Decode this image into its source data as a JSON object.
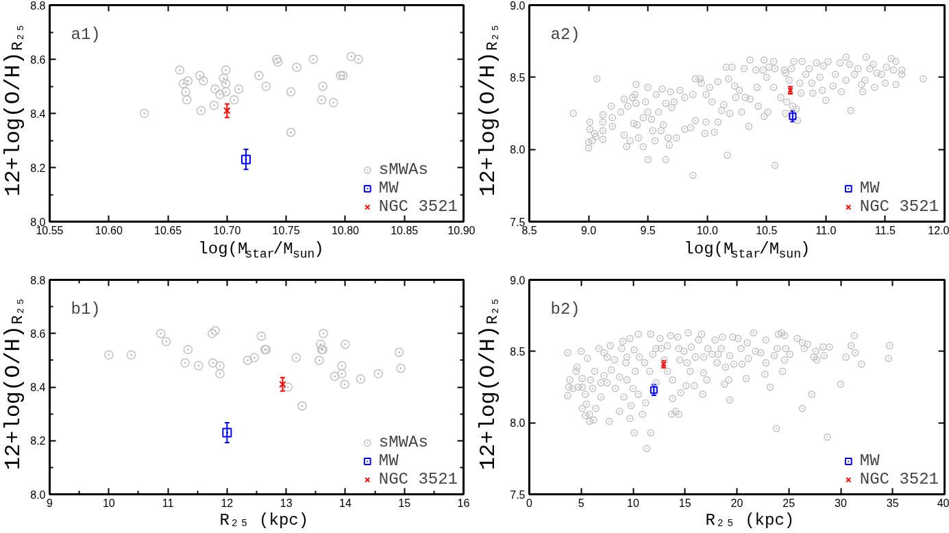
{
  "chart_data": [
    {
      "type": "scatter",
      "title": "a1)",
      "xlabel": "log(M$_{star}$/M$_{sun}$)",
      "ylabel": "12+log(O/H)$_{R₂₅}$",
      "xlim": [
        10.55,
        10.9
      ],
      "ylim": [
        8.0,
        8.8
      ],
      "xticks": [
        10.55,
        {
          "value": 10.6,
          "label": "10.60"
        },
        10.65,
        {
          "value": 10.7,
          "label": "10.70"
        },
        10.75,
        {
          "value": 10.8,
          "label": "10.80"
        },
        10.85,
        {
          "value": 10.9,
          "label": "10.90"
        }
      ],
      "yticks": [
        {
          "value": 8.0,
          "label": "8.0"
        },
        {
          "value": 8.1,
          "label": null
        },
        8.2,
        {
          "value": 8.3,
          "label": null
        },
        8.4,
        {
          "value": 8.5,
          "label": null
        },
        8.6,
        {
          "value": 8.7,
          "label": null
        },
        8.8
      ],
      "legend": "bottom right",
      "series": [
        {
          "name": "sMWAs",
          "color": "#c0c0c0",
          "marker": "circle",
          "x": [
            10.63,
            10.66,
            10.663,
            10.667,
            10.665,
            10.666,
            10.677,
            10.68,
            10.678,
            10.689,
            10.69,
            10.694,
            10.697,
            10.699,
            10.699,
            10.699,
            10.706,
            10.71,
            10.727,
            10.733,
            10.742,
            10.743,
            10.754,
            10.754,
            10.759,
            10.773,
            10.781,
            10.78,
            10.79,
            10.796,
            10.798,
            10.805,
            10.811
          ],
          "values": [
            8.4,
            8.56,
            8.51,
            8.52,
            8.48,
            8.45,
            8.54,
            8.52,
            8.41,
            8.43,
            8.49,
            8.47,
            8.53,
            8.56,
            8.51,
            8.48,
            8.45,
            8.49,
            8.54,
            8.5,
            8.6,
            8.59,
            8.48,
            8.33,
            8.57,
            8.6,
            8.5,
            8.45,
            8.44,
            8.54,
            8.54,
            8.61,
            8.6
          ]
        },
        {
          "name": "MW",
          "color": "#0000ff",
          "marker": "square",
          "x": [
            10.716
          ],
          "values": [
            8.23
          ],
          "errors": [
            0.037
          ]
        },
        {
          "name": "NGC 3521",
          "color": "#ff0000",
          "marker": "cross",
          "x": [
            10.7
          ],
          "values": [
            8.41
          ],
          "errors": [
            0.025
          ]
        }
      ]
    },
    {
      "type": "scatter",
      "title": "a2)",
      "xlabel": "log(M$_{star}$/M$_{sun}$)",
      "ylabel": "12+log(O/H)$_{R₂₅}$",
      "xlim": [
        8.5,
        12.0
      ],
      "ylim": [
        7.5,
        9.0
      ],
      "xticks": [
        8.5,
        {
          "value": 9.0,
          "label": "9.0"
        },
        9.5,
        {
          "value": 10.0,
          "label": "10.0"
        },
        10.5,
        {
          "value": 11.0,
          "label": "11.0"
        },
        11.5,
        {
          "value": 12.0,
          "label": "12.0"
        }
      ],
      "yticks": [
        7.5,
        {
          "value": 8.0,
          "label": "8.0"
        },
        8.5,
        {
          "value": 9.0,
          "label": "9.0"
        }
      ],
      "legend": "bottom right",
      "series": [
        {
          "color": "#c0c0c0",
          "marker": "circle",
          "x": [
            8.87,
            9.07,
            9.01,
            9.01,
            9.0,
            9.0,
            9.03,
            9.05,
            9.06,
            9.12,
            9.12,
            9.12,
            9.12,
            9.19,
            9.2,
            9.2,
            9.27,
            9.3,
            9.3,
            9.32,
            9.33,
            9.35,
            9.37,
            9.38,
            9.4,
            9.39,
            9.4,
            9.41,
            9.42,
            9.46,
            9.46,
            9.48,
            9.5,
            9.5,
            9.5,
            9.53,
            9.54,
            9.57,
            9.56,
            9.59,
            9.61,
            9.62,
            9.63,
            9.65,
            9.65,
            9.67,
            9.68,
            9.69,
            9.7,
            9.72,
            9.74,
            9.77,
            9.81,
            9.81,
            9.86,
            9.88,
            9.88,
            9.9,
            9.9,
            9.94,
            9.95,
            9.98,
            9.99,
            10.02,
            10.04,
            10.06,
            10.09,
            10.09,
            10.12,
            10.14,
            10.16,
            10.17,
            10.18,
            10.19,
            10.21,
            10.23,
            10.27,
            10.29,
            10.31,
            10.32,
            10.35,
            10.36,
            10.36,
            10.41,
            10.42,
            10.43,
            10.47,
            10.48,
            10.48,
            10.5,
            10.51,
            10.52,
            10.56,
            10.56,
            10.57,
            10.57,
            10.62,
            10.65,
            10.66,
            10.67,
            10.69,
            10.72,
            10.73,
            10.75,
            10.76,
            10.79,
            10.8,
            10.83,
            10.86,
            10.88,
            10.89,
            10.92,
            10.95,
            10.97,
            10.98,
            11.0,
            11.02,
            11.06,
            11.08,
            11.12,
            11.13,
            11.17,
            11.17,
            11.2,
            11.21,
            11.24,
            11.27,
            11.3,
            11.31,
            11.33,
            11.34,
            11.37,
            11.4,
            11.41,
            11.43,
            11.47,
            11.5,
            11.51,
            11.55,
            11.57,
            11.59,
            11.59,
            11.64,
            11.64,
            11.82,
            10.66,
            10.71,
            10.78,
            9.99,
            10.24
          ],
          "values": [
            8.25,
            8.49,
            8.19,
            8.14,
            8.05,
            8.01,
            8.06,
            8.11,
            8.09,
            8.07,
            8.13,
            8.19,
            8.24,
            8.3,
            8.22,
            8.16,
            8.26,
            8.35,
            8.1,
            8.02,
            8.3,
            8.06,
            8.36,
            8.18,
            8.45,
            8.38,
            8.32,
            8.17,
            8.08,
            8.02,
            8.22,
            8.33,
            8.43,
            7.93,
            8.26,
            8.21,
            8.13,
            8.38,
            8.06,
            8.26,
            8.13,
            8.42,
            8.17,
            7.93,
            8.32,
            8.08,
            8.03,
            8.4,
            8.29,
            8.33,
            8.08,
            8.41,
            8.36,
            8.14,
            8.15,
            7.82,
            8.38,
            8.49,
            8.2,
            8.49,
            8.46,
            8.11,
            8.19,
            8.43,
            8.33,
            8.12,
            8.19,
            8.47,
            8.27,
            8.31,
            8.57,
            7.96,
            8.49,
            8.25,
            8.57,
            8.44,
            8.41,
            8.26,
            8.56,
            8.36,
            8.16,
            8.62,
            8.35,
            8.55,
            8.43,
            8.3,
            8.55,
            8.62,
            8.23,
            8.5,
            8.26,
            8.57,
            8.61,
            8.43,
            7.89,
            8.56,
            8.36,
            8.55,
            8.25,
            8.33,
            8.48,
            8.3,
            8.61,
            8.28,
            8.2,
            8.39,
            8.61,
            8.52,
            8.56,
            8.46,
            8.39,
            8.6,
            8.5,
            8.41,
            8.58,
            8.34,
            8.61,
            8.44,
            8.52,
            8.6,
            8.4,
            8.48,
            8.64,
            8.59,
            8.27,
            8.52,
            8.56,
            8.45,
            8.4,
            8.48,
            8.64,
            8.56,
            8.59,
            8.43,
            8.53,
            8.52,
            8.46,
            8.57,
            8.63,
            8.55,
            8.61,
            8.45,
            8.52,
            8.55,
            8.49,
            8.53,
            8.56,
            8.46,
            8.38,
            8.36
          ]
        },
        {
          "name": "MW",
          "color": "#0000ff",
          "marker": "square",
          "x": [
            10.72
          ],
          "values": [
            8.23
          ],
          "errors": [
            0.037
          ]
        },
        {
          "name": "NGC 3521",
          "color": "#ff0000",
          "marker": "cross",
          "x": [
            10.7
          ],
          "values": [
            8.41
          ],
          "errors": [
            0.025
          ]
        }
      ]
    },
    {
      "type": "scatter",
      "title": "b1)",
      "xlabel": "R₂₅ (kpc)",
      "ylabel": "12+log(O/H)$_{R₂₅}$",
      "xlim": [
        9,
        16
      ],
      "ylim": [
        8.0,
        8.8
      ],
      "xticks": [
        9,
        {
          "value": 9.5,
          "label": null
        },
        10,
        {
          "value": 10.5,
          "label": null
        },
        11,
        {
          "value": 11.5,
          "label": null
        },
        12,
        {
          "value": 12.5,
          "label": null
        },
        13,
        {
          "value": 13.5,
          "label": null
        },
        14,
        {
          "value": 14.5,
          "label": null
        },
        15,
        {
          "value": 15.5,
          "label": null
        },
        16
      ],
      "yticks": [
        {
          "value": 8.0,
          "label": "8.0"
        },
        {
          "value": 8.1,
          "label": null
        },
        8.2,
        {
          "value": 8.3,
          "label": null
        },
        8.4,
        {
          "value": 8.5,
          "label": null
        },
        8.6,
        {
          "value": 8.7,
          "label": null
        },
        8.8
      ],
      "legend": "bottom right",
      "series": [
        {
          "name": "sMWAs",
          "color": "#c0c0c0",
          "marker": "circle",
          "x": [
            10.0,
            10.38,
            10.88,
            10.97,
            11.34,
            11.29,
            11.52,
            11.75,
            11.8,
            11.76,
            11.88,
            11.88,
            12.35,
            12.46,
            12.58,
            12.64,
            12.66,
            13.03,
            13.17,
            13.27,
            13.56,
            13.58,
            13.6,
            13.62,
            13.63,
            13.82,
            13.94,
            13.94,
            13.99,
            14.0,
            14.26,
            14.56,
            14.91,
            14.94
          ],
          "values": [
            8.52,
            8.52,
            8.6,
            8.57,
            8.54,
            8.49,
            8.48,
            8.6,
            8.61,
            8.49,
            8.48,
            8.45,
            8.5,
            8.51,
            8.59,
            8.54,
            8.54,
            8.4,
            8.51,
            8.33,
            8.5,
            8.56,
            8.54,
            8.54,
            8.6,
            8.44,
            8.45,
            8.48,
            8.41,
            8.56,
            8.43,
            8.45,
            8.53,
            8.47
          ]
        },
        {
          "name": "MW",
          "color": "#0000ff",
          "marker": "square",
          "x": [
            12.0
          ],
          "values": [
            8.23
          ],
          "errors": [
            0.037
          ]
        },
        {
          "name": "NGC 3521",
          "color": "#ff0000",
          "marker": "cross",
          "x": [
            12.94
          ],
          "values": [
            8.41
          ],
          "errors": [
            0.025
          ]
        }
      ]
    },
    {
      "type": "scatter",
      "title": "b2)",
      "xlabel": "R₂₅ (kpc)",
      "ylabel": "12+log(O/H)$_{R₂₅}$",
      "xlim": [
        0,
        40
      ],
      "ylim": [
        7.5,
        9.0
      ],
      "xticks": [
        0,
        5,
        10,
        15,
        20,
        25,
        30,
        35,
        40
      ],
      "yticks": [
        7.5,
        {
          "value": 8.0,
          "label": "8.0"
        },
        8.5,
        {
          "value": 9.0,
          "label": "9.0"
        }
      ],
      "legend": "bottom right",
      "series": [
        {
          "color": "#c0c0c0",
          "marker": "circle",
          "x": [
            3.7,
            3.7,
            3.9,
            3.8,
            4.5,
            4.6,
            4.2,
            4.7,
            5.0,
            5.1,
            5.1,
            5.4,
            5.6,
            5.5,
            5.1,
            5.4,
            5.8,
            5.8,
            6.2,
            6.4,
            5.9,
            6.1,
            6.3,
            6.7,
            6.9,
            7.2,
            7.2,
            7.5,
            7.7,
            7.8,
            7.9,
            8.2,
            8.3,
            8.7,
            8.7,
            9.0,
            9.1,
            9.3,
            9.4,
            9.7,
            9.7,
            9.8,
            10.0,
            10.1,
            10.2,
            10.5,
            10.5,
            10.6,
            10.9,
            11.2,
            11.3,
            11.7,
            11.7,
            11.6,
            11.9,
            12.2,
            12.6,
            12.7,
            13.3,
            13.3,
            13.6,
            13.7,
            13.8,
            13.8,
            14.1,
            14.4,
            14.3,
            14.5,
            14.6,
            14.9,
            15.1,
            15.3,
            15.5,
            15.6,
            15.9,
            16.0,
            16.3,
            16.6,
            16.7,
            16.8,
            17.1,
            17.2,
            17.6,
            17.9,
            18.1,
            18.5,
            18.6,
            18.8,
            18.9,
            19.2,
            19.3,
            19.3,
            19.6,
            19.7,
            20.1,
            20.4,
            20.5,
            20.9,
            21.0,
            21.1,
            21.6,
            21.8,
            22.3,
            22.7,
            22.8,
            22.8,
            23.2,
            23.6,
            23.8,
            23.9,
            24.0,
            24.3,
            24.4,
            24.6,
            24.6,
            24.7,
            25.1,
            25.8,
            26.3,
            26.3,
            26.5,
            26.8,
            27.2,
            27.4,
            27.6,
            27.7,
            28.3,
            28.4,
            28.7,
            28.9,
            30.0,
            30.5,
            31.0,
            31.3,
            31.4,
            32.0,
            34.7,
            34.6,
            7.5,
            8.9,
            9.4,
            10.1,
            11.1,
            12.2,
            13.0,
            14.4,
            15.2,
            16.8,
            18.2,
            6.9
          ],
          "values": [
            8.49,
            8.19,
            8.3,
            8.25,
            8.36,
            8.39,
            8.24,
            8.25,
            8.5,
            8.25,
            8.31,
            8.2,
            8.45,
            8.13,
            8.1,
            8.05,
            8.06,
            8.01,
            8.02,
            8.1,
            8.3,
            8.24,
            8.36,
            8.52,
            8.18,
            8.49,
            8.33,
            8.28,
            8.01,
            8.54,
            8.37,
            8.44,
            8.24,
            8.08,
            8.32,
            8.57,
            8.18,
            8.42,
            8.3,
            8.03,
            8.59,
            8.12,
            8.24,
            7.93,
            8.36,
            8.62,
            8.2,
            8.46,
            8.06,
            8.14,
            7.82,
            7.93,
            8.62,
            8.36,
            8.48,
            8.28,
            8.59,
            8.52,
            8.36,
            8.54,
            8.61,
            8.06,
            8.17,
            8.3,
            8.08,
            8.06,
            8.6,
            8.44,
            8.21,
            8.5,
            8.26,
            8.63,
            8.36,
            8.53,
            8.26,
            8.46,
            8.58,
            8.62,
            8.2,
            8.35,
            8.3,
            8.52,
            8.48,
            8.58,
            8.42,
            8.52,
            8.6,
            8.27,
            8.39,
            8.3,
            8.47,
            8.16,
            8.6,
            8.41,
            8.59,
            8.52,
            8.41,
            8.31,
            8.56,
            8.45,
            8.63,
            8.5,
            8.49,
            8.34,
            8.58,
            8.42,
            8.25,
            8.47,
            7.96,
            8.52,
            8.62,
            8.63,
            8.36,
            8.44,
            8.61,
            8.52,
            8.48,
            8.59,
            8.56,
            8.1,
            8.52,
            8.55,
            8.2,
            8.46,
            8.5,
            8.44,
            8.53,
            8.47,
            7.9,
            8.53,
            8.27,
            8.46,
            8.54,
            8.61,
            8.49,
            8.41,
            8.54,
            8.45,
            8.46,
            8.52,
            8.46,
            8.51,
            8.42,
            8.52,
            8.44,
            8.52,
            8.42,
            8.46,
            8.48,
            8.28
          ]
        },
        {
          "name": "MW",
          "color": "#0000ff",
          "marker": "square",
          "x": [
            12.0
          ],
          "values": [
            8.23
          ],
          "errors": [
            0.037
          ]
        },
        {
          "name": "NGC 3521",
          "color": "#ff0000",
          "marker": "cross",
          "x": [
            12.94
          ],
          "values": [
            8.41
          ],
          "errors": [
            0.025
          ]
        }
      ]
    }
  ]
}
